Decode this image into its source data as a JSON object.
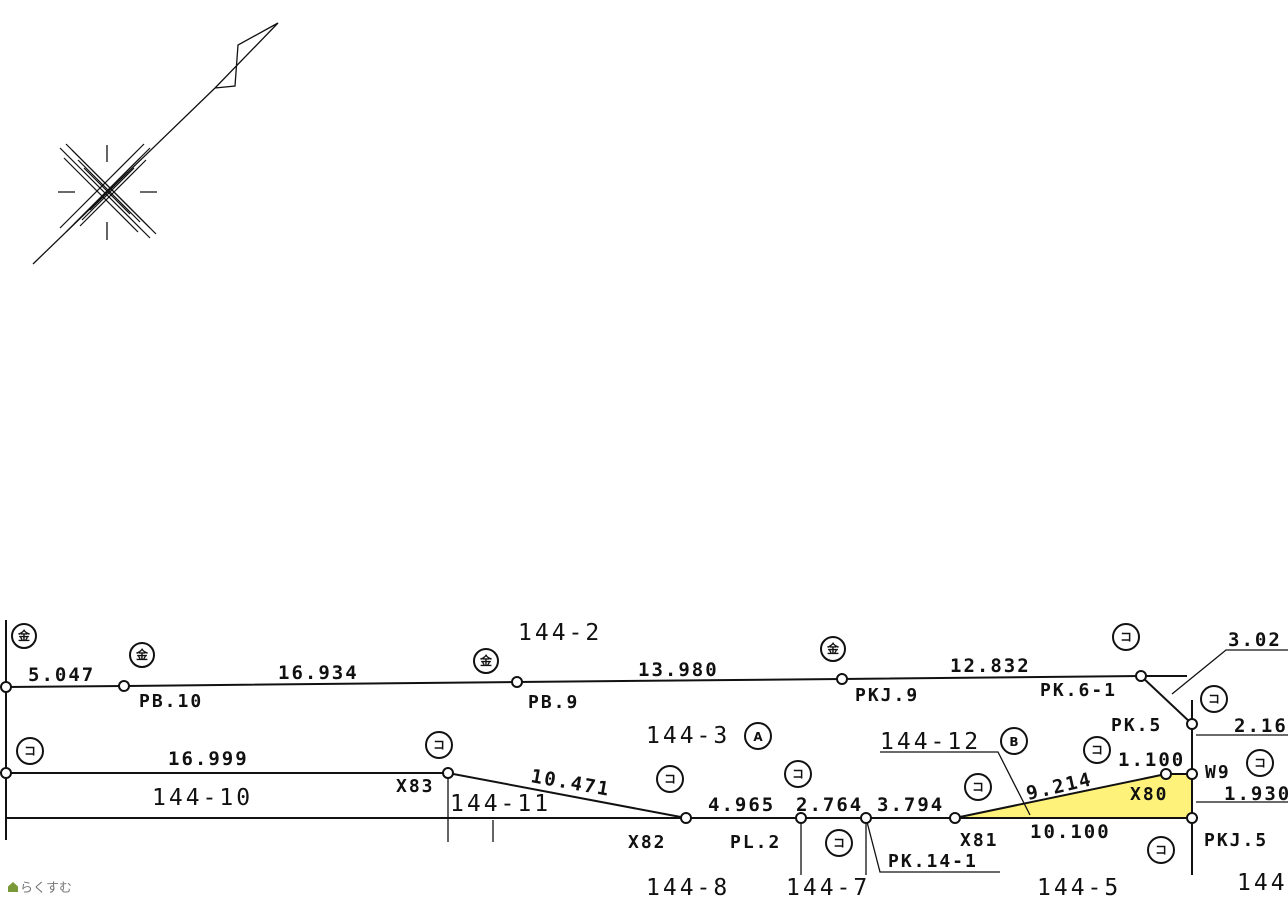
{
  "colors": {
    "highlight": "#fff27a",
    "line": "#111111"
  },
  "marker_symbols": {
    "metal": "金",
    "concrete": "コ",
    "A": "A",
    "B": "B"
  },
  "dimensions": [
    "5.047",
    "16.934",
    "13.980",
    "12.832",
    "3.02",
    "2.16",
    "1.100",
    "1.930",
    "16.999",
    "10.471",
    "4.965",
    "2.764",
    "3.794",
    "9.214",
    "10.100"
  ],
  "points": [
    "PB.10",
    "PB.9",
    "PKJ.9",
    "PK.6-1",
    "PK.5",
    "W9",
    "X80",
    "X83",
    "X82",
    "PL.2",
    "X81",
    "PKJ.5",
    "PK.14-1"
  ],
  "parcels": [
    "144-2",
    "144-3",
    "144-12",
    "144-10",
    "144-11",
    "144-8",
    "144-7",
    "144-5",
    "144"
  ],
  "watermark": "らくすむ"
}
